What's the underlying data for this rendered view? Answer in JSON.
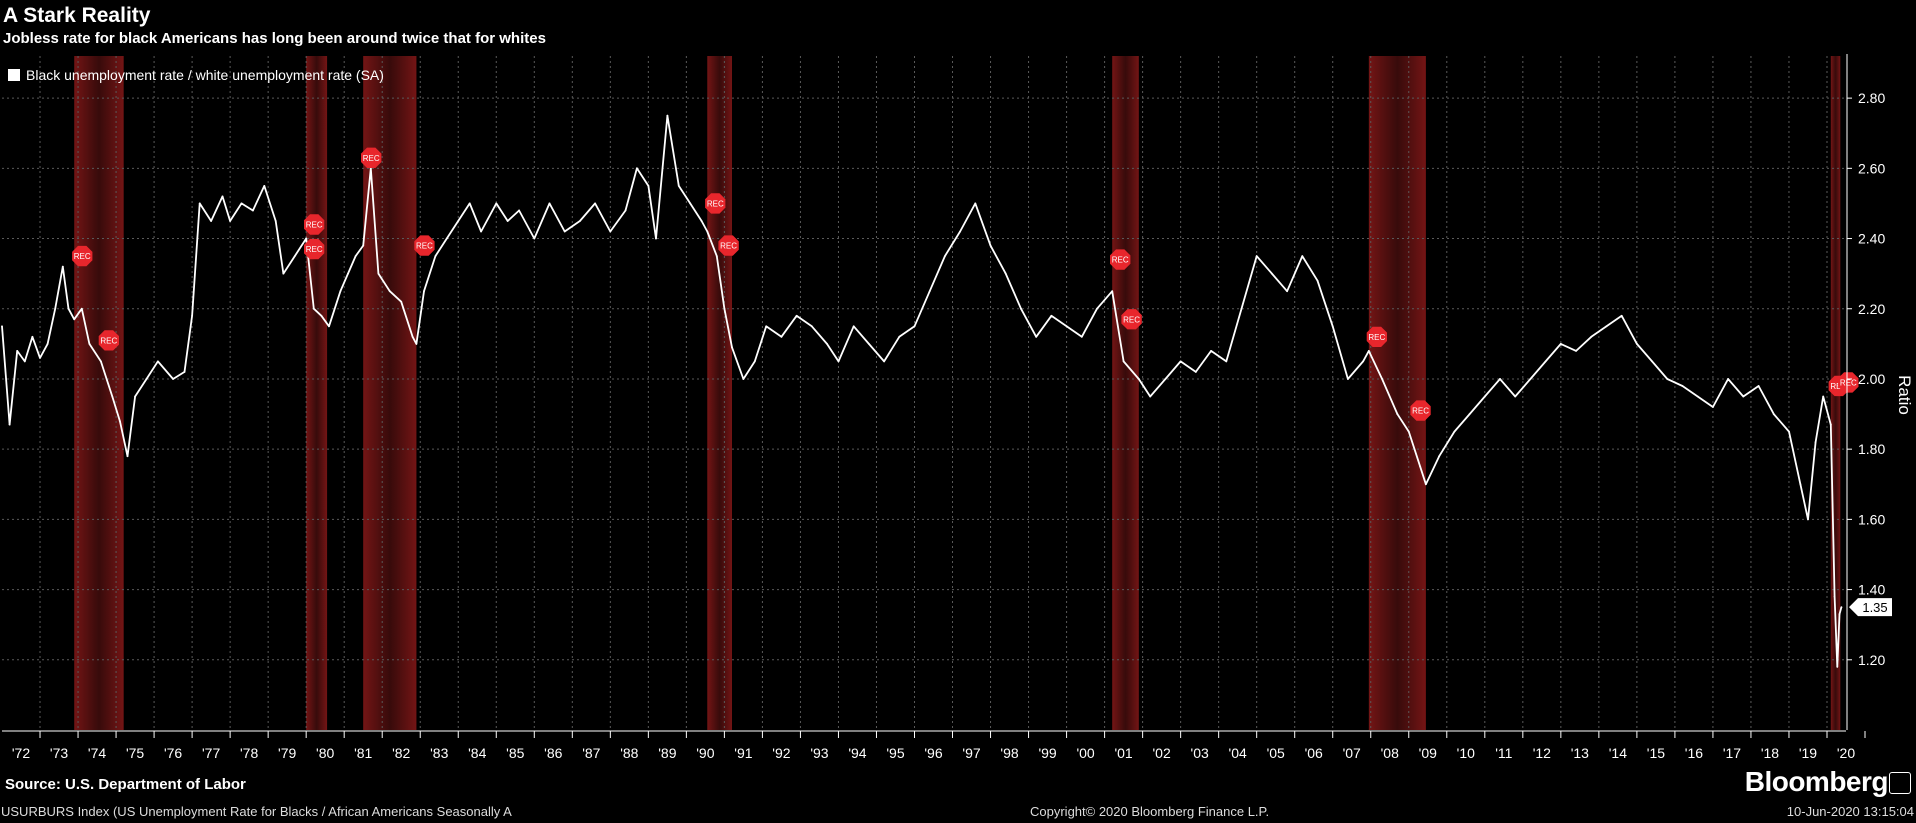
{
  "title": "A Stark Reality",
  "subtitle": "Jobless rate for black Americans has long been around twice that for whites",
  "source": "Source: U.S. Department of Labor",
  "brand": "Bloomberg",
  "footer": {
    "left": "USURBURS Index (US Unemployment Rate for Blacks / African Americans Seasonally A",
    "center": "Copyright© 2020 Bloomberg Finance L.P.",
    "right": "10-Jun-2020 13:15:04"
  },
  "colors": {
    "background": "#000000",
    "line": "#ffffff",
    "recession": "#8b1a1a",
    "marker": "#e8262c"
  },
  "chart_data": {
    "type": "line",
    "ylabel": "Ratio",
    "ylim": [
      1.0,
      2.92
    ],
    "yticks": [
      1.2,
      1.4,
      1.6,
      1.8,
      2.0,
      2.2,
      2.4,
      2.6,
      2.8
    ],
    "ytick_labels": [
      "1.20",
      "1.40",
      "1.60",
      "1.80",
      "2.00",
      "2.20",
      "2.40",
      "2.60",
      "2.80"
    ],
    "xlim": [
      1972.0,
      2020.5
    ],
    "x_tick_labels": [
      "'72",
      "'73",
      "'74",
      "'75",
      "'76",
      "'77",
      "'78",
      "'79",
      "'80",
      "'81",
      "'82",
      "'83",
      "'84",
      "'85",
      "'86",
      "'87",
      "'88",
      "'89",
      "'90",
      "'91",
      "'92",
      "'93",
      "'94",
      "'95",
      "'96",
      "'97",
      "'98",
      "'99",
      "'00",
      "'01",
      "'02",
      "'03",
      "'04",
      "'05",
      "'06",
      "'07",
      "'08",
      "'09",
      "'10",
      "'11",
      "'12",
      "'13",
      "'14",
      "'15",
      "'16",
      "'17",
      "'18",
      "'19",
      "'20"
    ],
    "grid": true,
    "legend_position": "top-left",
    "last_value_label": "1.35",
    "recession_marker_label": "REC",
    "recessions": [
      {
        "start": 1973.9,
        "end": 1975.2
      },
      {
        "start": 1980.0,
        "end": 1980.55
      },
      {
        "start": 1981.5,
        "end": 1982.9
      },
      {
        "start": 1990.55,
        "end": 1991.2
      },
      {
        "start": 2001.2,
        "end": 2001.9
      },
      {
        "start": 2007.95,
        "end": 2009.45
      },
      {
        "start": 2020.1,
        "end": 2020.35
      }
    ],
    "series": [
      {
        "name": "Black unemployment rate / white unemployment rate (SA)",
        "points": [
          [
            1972.0,
            2.15
          ],
          [
            1972.2,
            1.87
          ],
          [
            1972.4,
            2.08
          ],
          [
            1972.6,
            2.05
          ],
          [
            1972.8,
            2.12
          ],
          [
            1973.0,
            2.06
          ],
          [
            1973.2,
            2.1
          ],
          [
            1973.4,
            2.2
          ],
          [
            1973.6,
            2.32
          ],
          [
            1973.75,
            2.2
          ],
          [
            1973.9,
            2.17
          ],
          [
            1974.1,
            2.2
          ],
          [
            1974.3,
            2.1
          ],
          [
            1974.6,
            2.05
          ],
          [
            1974.9,
            1.95
          ],
          [
            1975.1,
            1.88
          ],
          [
            1975.3,
            1.78
          ],
          [
            1975.5,
            1.95
          ],
          [
            1975.8,
            2.0
          ],
          [
            1976.1,
            2.05
          ],
          [
            1976.5,
            2.0
          ],
          [
            1976.8,
            2.02
          ],
          [
            1977.0,
            2.18
          ],
          [
            1977.2,
            2.5
          ],
          [
            1977.5,
            2.45
          ],
          [
            1977.8,
            2.52
          ],
          [
            1978.0,
            2.45
          ],
          [
            1978.3,
            2.5
          ],
          [
            1978.6,
            2.48
          ],
          [
            1978.9,
            2.55
          ],
          [
            1979.2,
            2.45
          ],
          [
            1979.4,
            2.3
          ],
          [
            1979.7,
            2.35
          ],
          [
            1980.0,
            2.4
          ],
          [
            1980.2,
            2.2
          ],
          [
            1980.4,
            2.18
          ],
          [
            1980.6,
            2.15
          ],
          [
            1980.9,
            2.25
          ],
          [
            1981.1,
            2.3
          ],
          [
            1981.3,
            2.35
          ],
          [
            1981.5,
            2.38
          ],
          [
            1981.7,
            2.6
          ],
          [
            1981.9,
            2.3
          ],
          [
            1982.2,
            2.25
          ],
          [
            1982.5,
            2.22
          ],
          [
            1982.8,
            2.12
          ],
          [
            1982.9,
            2.1
          ],
          [
            1983.1,
            2.25
          ],
          [
            1983.4,
            2.35
          ],
          [
            1983.7,
            2.4
          ],
          [
            1984.0,
            2.45
          ],
          [
            1984.3,
            2.5
          ],
          [
            1984.6,
            2.42
          ],
          [
            1985.0,
            2.5
          ],
          [
            1985.3,
            2.45
          ],
          [
            1985.6,
            2.48
          ],
          [
            1986.0,
            2.4
          ],
          [
            1986.4,
            2.5
          ],
          [
            1986.8,
            2.42
          ],
          [
            1987.2,
            2.45
          ],
          [
            1987.6,
            2.5
          ],
          [
            1988.0,
            2.42
          ],
          [
            1988.4,
            2.48
          ],
          [
            1988.7,
            2.6
          ],
          [
            1989.0,
            2.55
          ],
          [
            1989.2,
            2.4
          ],
          [
            1989.5,
            2.75
          ],
          [
            1989.8,
            2.55
          ],
          [
            1990.1,
            2.5
          ],
          [
            1990.4,
            2.45
          ],
          [
            1990.55,
            2.42
          ],
          [
            1990.8,
            2.35
          ],
          [
            1991.0,
            2.2
          ],
          [
            1991.2,
            2.09
          ],
          [
            1991.5,
            2.0
          ],
          [
            1991.8,
            2.05
          ],
          [
            1992.1,
            2.15
          ],
          [
            1992.5,
            2.12
          ],
          [
            1992.9,
            2.18
          ],
          [
            1993.3,
            2.15
          ],
          [
            1993.7,
            2.1
          ],
          [
            1994.0,
            2.05
          ],
          [
            1994.4,
            2.15
          ],
          [
            1994.8,
            2.1
          ],
          [
            1995.2,
            2.05
          ],
          [
            1995.6,
            2.12
          ],
          [
            1996.0,
            2.15
          ],
          [
            1996.4,
            2.25
          ],
          [
            1996.8,
            2.35
          ],
          [
            1997.2,
            2.42
          ],
          [
            1997.6,
            2.5
          ],
          [
            1998.0,
            2.38
          ],
          [
            1998.4,
            2.3
          ],
          [
            1998.8,
            2.2
          ],
          [
            1999.2,
            2.12
          ],
          [
            1999.6,
            2.18
          ],
          [
            2000.0,
            2.15
          ],
          [
            2000.4,
            2.12
          ],
          [
            2000.8,
            2.2
          ],
          [
            2001.2,
            2.25
          ],
          [
            2001.5,
            2.05
          ],
          [
            2001.9,
            2.0
          ],
          [
            2002.2,
            1.95
          ],
          [
            2002.6,
            2.0
          ],
          [
            2003.0,
            2.05
          ],
          [
            2003.4,
            2.02
          ],
          [
            2003.8,
            2.08
          ],
          [
            2004.2,
            2.05
          ],
          [
            2004.6,
            2.2
          ],
          [
            2005.0,
            2.35
          ],
          [
            2005.4,
            2.3
          ],
          [
            2005.8,
            2.25
          ],
          [
            2006.2,
            2.35
          ],
          [
            2006.6,
            2.28
          ],
          [
            2007.0,
            2.15
          ],
          [
            2007.4,
            2.0
          ],
          [
            2007.8,
            2.05
          ],
          [
            2007.95,
            2.08
          ],
          [
            2008.3,
            2.0
          ],
          [
            2008.7,
            1.9
          ],
          [
            2009.0,
            1.85
          ],
          [
            2009.3,
            1.75
          ],
          [
            2009.45,
            1.7
          ],
          [
            2009.8,
            1.78
          ],
          [
            2010.2,
            1.85
          ],
          [
            2010.6,
            1.9
          ],
          [
            2011.0,
            1.95
          ],
          [
            2011.4,
            2.0
          ],
          [
            2011.8,
            1.95
          ],
          [
            2012.2,
            2.0
          ],
          [
            2012.6,
            2.05
          ],
          [
            2013.0,
            2.1
          ],
          [
            2013.4,
            2.08
          ],
          [
            2013.8,
            2.12
          ],
          [
            2014.2,
            2.15
          ],
          [
            2014.6,
            2.18
          ],
          [
            2015.0,
            2.1
          ],
          [
            2015.4,
            2.05
          ],
          [
            2015.8,
            2.0
          ],
          [
            2016.2,
            1.98
          ],
          [
            2016.6,
            1.95
          ],
          [
            2017.0,
            1.92
          ],
          [
            2017.4,
            2.0
          ],
          [
            2017.8,
            1.95
          ],
          [
            2018.2,
            1.98
          ],
          [
            2018.6,
            1.9
          ],
          [
            2019.0,
            1.85
          ],
          [
            2019.3,
            1.7
          ],
          [
            2019.5,
            1.6
          ],
          [
            2019.7,
            1.82
          ],
          [
            2019.9,
            1.95
          ],
          [
            2020.1,
            1.87
          ],
          [
            2020.2,
            1.38
          ],
          [
            2020.27,
            1.18
          ],
          [
            2020.33,
            1.33
          ],
          [
            2020.38,
            1.35
          ]
        ]
      }
    ],
    "recession_markers": [
      {
        "x": 1973.9,
        "y": 2.35
      },
      {
        "x": 1974.6,
        "y": 2.11
      },
      {
        "x": 1980.0,
        "y": 2.44
      },
      {
        "x": 1980.0,
        "y": 2.37
      },
      {
        "x": 1981.5,
        "y": 2.63
      },
      {
        "x": 1982.9,
        "y": 2.38
      },
      {
        "x": 1990.55,
        "y": 2.5
      },
      {
        "x": 1990.9,
        "y": 2.38
      },
      {
        "x": 2001.2,
        "y": 2.34
      },
      {
        "x": 2001.5,
        "y": 2.17
      },
      {
        "x": 2007.95,
        "y": 2.12
      },
      {
        "x": 2009.1,
        "y": 1.91
      },
      {
        "x": 2020.1,
        "y": 1.98
      },
      {
        "x": 2020.35,
        "y": 1.99
      }
    ]
  }
}
